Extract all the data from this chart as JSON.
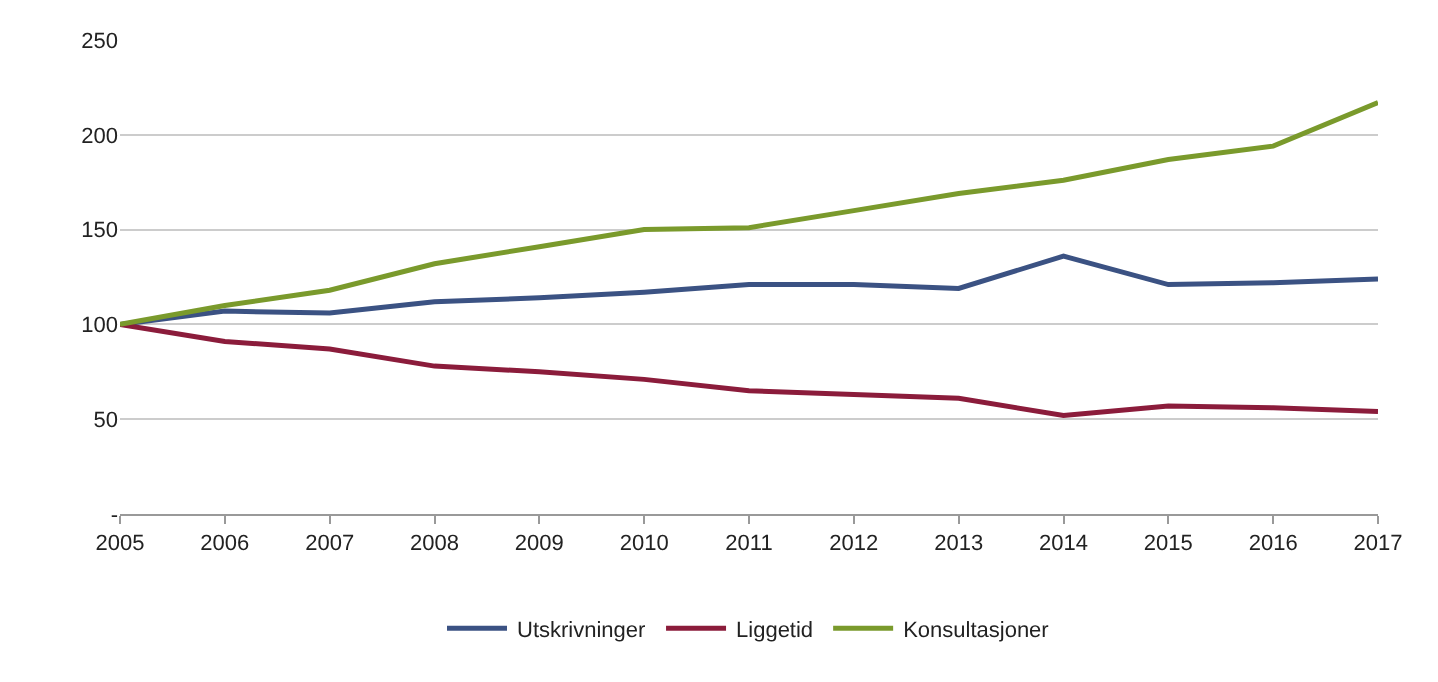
{
  "chart_data": {
    "type": "line",
    "categories": [
      "2005",
      "2006",
      "2007",
      "2008",
      "2009",
      "2010",
      "2011",
      "2012",
      "2013",
      "2014",
      "2015",
      "2016",
      "2017"
    ],
    "series": [
      {
        "name": "Utskrivninger",
        "color": "#3b5283",
        "values": [
          100,
          107,
          106,
          112,
          114,
          117,
          121,
          121,
          119,
          136,
          121,
          122,
          124
        ]
      },
      {
        "name": "Liggetid",
        "color": "#8b1c3b",
        "values": [
          100,
          91,
          87,
          78,
          75,
          71,
          65,
          63,
          61,
          52,
          57,
          56,
          54
        ]
      },
      {
        "name": "Konsultasjoner",
        "color": "#7a9a2c",
        "values": [
          100,
          110,
          118,
          132,
          141,
          150,
          151,
          160,
          169,
          176,
          187,
          194,
          217
        ]
      }
    ],
    "ylim": [
      0,
      250
    ],
    "yticks": [
      {
        "value": 0,
        "label": "-"
      },
      50,
      100,
      150,
      200,
      250
    ],
    "grid": "y",
    "legend": "bottom",
    "marker": "none",
    "line_style": "solid"
  }
}
